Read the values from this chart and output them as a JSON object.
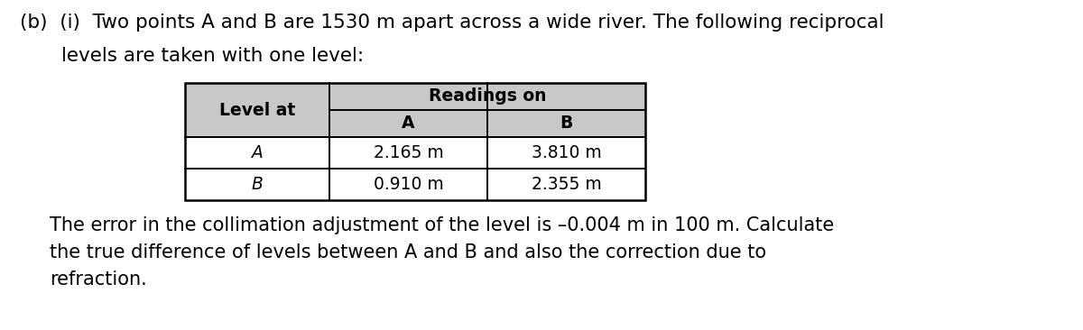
{
  "title_line1": "(b)  (i)  Two points A and B are 1530 m apart across a wide river. The following reciprocal",
  "title_line2": "levels are taken with one level:",
  "table_header_merged": "Readings on",
  "table_col0_header": "Level at",
  "table_col1_header": "A",
  "table_col2_header": "B",
  "table_row1": [
    "A",
    "2.165 m",
    "3.810 m"
  ],
  "table_row2": [
    "B",
    "0.910 m",
    "2.355 m"
  ],
  "body_line1": "The error in the collimation adjustment of the level is –0.004 m in 100 m. Calculate",
  "body_line2": "the true difference of levels between A and B and also the correction due to",
  "body_line3": "refraction.",
  "bg_color": "#ffffff",
  "text_color": "#000000",
  "table_header_bg": "#c8c8c8",
  "table_cell_bg": "#ffffff",
  "table_border_color": "#000000",
  "font_size_title": 15.5,
  "font_size_body": 15.0,
  "font_size_table_header": 13.5,
  "font_size_table_cell": 13.5,
  "tl": 205,
  "tt": 92,
  "cw0": 160,
  "cw1": 175,
  "cw2": 175,
  "rh_header1": 30,
  "rh_header2": 30,
  "rh_row": 35
}
